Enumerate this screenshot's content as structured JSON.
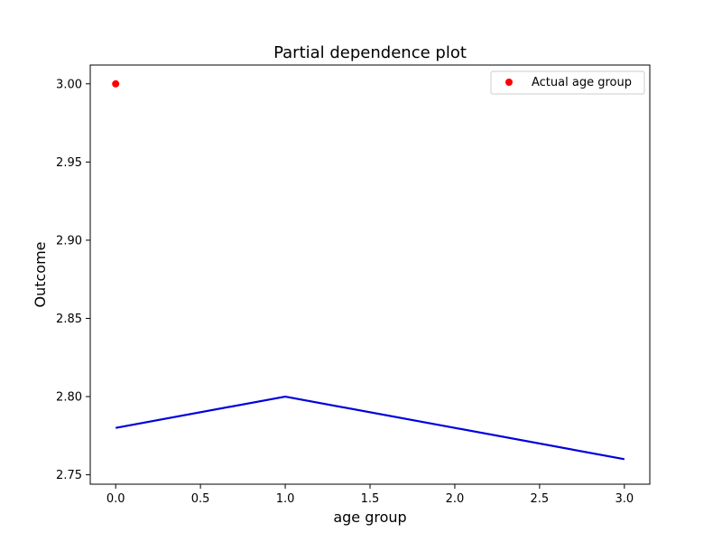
{
  "chart_data": {
    "type": "line",
    "title": "Partial dependence plot",
    "xlabel": "age group",
    "ylabel": "Outcome",
    "xlim": [
      -0.15,
      3.15
    ],
    "ylim": [
      2.744,
      3.012
    ],
    "x_ticks": [
      0.0,
      0.5,
      1.0,
      1.5,
      2.0,
      2.5,
      3.0
    ],
    "x_tick_labels": [
      "0.0",
      "0.5",
      "1.0",
      "1.5",
      "2.0",
      "2.5",
      "3.0"
    ],
    "y_ticks": [
      2.75,
      2.8,
      2.85,
      2.9,
      2.95,
      3.0
    ],
    "y_tick_labels": [
      "2.75",
      "2.80",
      "2.85",
      "2.90",
      "2.95",
      "3.00"
    ],
    "grid": false,
    "legend_position": "top-right",
    "series": [
      {
        "type": "line",
        "color": "#0000dd",
        "x": [
          0,
          1,
          2,
          3
        ],
        "y": [
          2.78,
          2.8,
          2.78,
          2.76
        ]
      },
      {
        "type": "scatter",
        "name": "Actual age group",
        "color": "#ff0000",
        "x": [
          0
        ],
        "y": [
          3.0
        ]
      }
    ]
  }
}
